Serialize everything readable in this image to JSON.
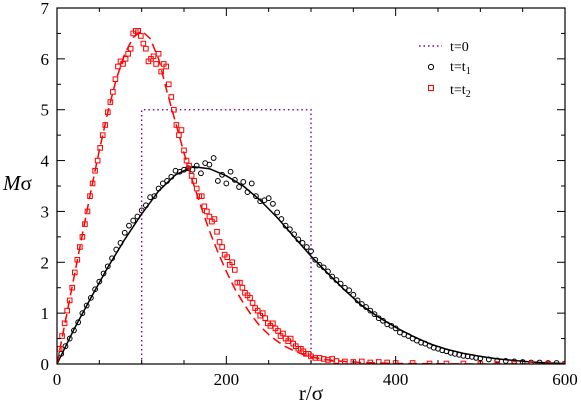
{
  "chart_data": {
    "type": "scatter",
    "title": "",
    "xlabel": "r/σ",
    "ylabel_italic": "M",
    "ylabel_rest": "σ",
    "xlim": [
      0,
      600
    ],
    "ylim": [
      0,
      7
    ],
    "xticks": [
      0,
      200,
      400,
      600
    ],
    "yticks": [
      0,
      1,
      2,
      3,
      4,
      5,
      6,
      7
    ],
    "xtick_labels": [
      "0",
      "200",
      "400",
      "600"
    ],
    "ytick_labels": [
      "0",
      "1",
      "2",
      "3",
      "4",
      "5",
      "6",
      "7"
    ],
    "minor_ticks": true,
    "grid": false,
    "legend_position": "top-right",
    "legend": [
      {
        "label_main": "t=0",
        "label_sub": "",
        "color": "#800080",
        "marker": "dotted-line"
      },
      {
        "label_main": "t=t",
        "label_sub": "1",
        "color": "#000000",
        "marker": "open-circle"
      },
      {
        "label_main": "t=t",
        "label_sub": "2",
        "color": "#ff0000",
        "marker": "open-square"
      }
    ],
    "series": [
      {
        "name": "t=0",
        "style": "dotted",
        "color": "#800080",
        "x": [
          100,
          100,
          300,
          300
        ],
        "y": [
          0,
          5,
          5,
          0
        ]
      },
      {
        "name": "t=t1",
        "style": "markers-with-solid-fit",
        "marker": "open-circle",
        "color": "#000000",
        "fit_x": [
          0,
          20,
          40,
          60,
          80,
          100,
          120,
          140,
          160,
          180,
          200,
          220,
          240,
          260,
          280,
          300,
          320,
          340,
          360,
          380,
          400,
          420,
          440,
          460,
          480,
          500,
          520,
          540,
          560,
          580,
          600
        ],
        "fit_y": [
          0,
          0.68,
          1.3,
          1.9,
          2.45,
          2.95,
          3.4,
          3.72,
          3.88,
          3.84,
          3.7,
          3.5,
          3.22,
          2.88,
          2.5,
          2.12,
          1.78,
          1.45,
          1.15,
          0.92,
          0.72,
          0.55,
          0.4,
          0.29,
          0.21,
          0.15,
          0.1,
          0.07,
          0.04,
          0.02,
          0.01
        ],
        "x": [
          5,
          10,
          15,
          20,
          25,
          30,
          35,
          40,
          45,
          50,
          55,
          60,
          65,
          70,
          75,
          80,
          85,
          90,
          95,
          100,
          105,
          110,
          115,
          120,
          125,
          130,
          135,
          140,
          145,
          150,
          155,
          160,
          165,
          170,
          175,
          180,
          185,
          190,
          195,
          200,
          205,
          210,
          215,
          220,
          225,
          230,
          235,
          240,
          245,
          250,
          255,
          260,
          265,
          270,
          275,
          280,
          285,
          290,
          295,
          300,
          305,
          310,
          315,
          320,
          325,
          330,
          335,
          340,
          345,
          350,
          355,
          360,
          365,
          370,
          375,
          380,
          385,
          390,
          395,
          400,
          405,
          410,
          415,
          420,
          425,
          430,
          435,
          440,
          445,
          450,
          455,
          460,
          465,
          470,
          475,
          480,
          485,
          490,
          495,
          500,
          510,
          520,
          530,
          540,
          550,
          560,
          570,
          580,
          590,
          600
        ],
        "y": [
          0.2,
          0.35,
          0.5,
          0.66,
          0.82,
          1.0,
          1.15,
          1.3,
          1.47,
          1.62,
          1.78,
          1.92,
          2.08,
          2.25,
          2.38,
          2.58,
          2.72,
          2.82,
          2.9,
          3.02,
          3.12,
          3.28,
          3.3,
          3.45,
          3.55,
          3.6,
          3.68,
          3.8,
          3.78,
          3.82,
          3.85,
          3.82,
          3.9,
          3.75,
          3.95,
          3.92,
          4.05,
          3.6,
          3.72,
          3.55,
          3.78,
          3.62,
          3.48,
          3.58,
          3.38,
          3.55,
          3.3,
          3.2,
          3.22,
          3.26,
          3.15,
          2.98,
          2.85,
          2.72,
          2.65,
          2.55,
          2.45,
          2.38,
          2.3,
          2.22,
          2.05,
          1.95,
          1.9,
          1.82,
          1.72,
          1.65,
          1.58,
          1.5,
          1.45,
          1.36,
          1.25,
          1.18,
          1.12,
          1.05,
          0.98,
          0.9,
          0.85,
          0.78,
          0.75,
          0.7,
          0.62,
          0.58,
          0.55,
          0.5,
          0.46,
          0.42,
          0.4,
          0.36,
          0.32,
          0.3,
          0.27,
          0.25,
          0.22,
          0.2,
          0.18,
          0.16,
          0.15,
          0.14,
          0.12,
          0.11,
          0.09,
          0.07,
          0.06,
          0.05,
          0.04,
          0.03,
          0.03,
          0.02,
          0.02,
          0.01
        ]
      },
      {
        "name": "t=t2",
        "style": "markers-with-dashed-fit",
        "marker": "open-square",
        "color": "#ff0000",
        "fit_x": [
          0,
          10,
          20,
          30,
          40,
          50,
          60,
          70,
          80,
          90,
          100,
          110,
          120,
          130,
          140,
          150,
          160,
          170,
          180,
          190,
          200,
          210,
          220,
          230,
          240,
          250,
          260,
          270,
          280,
          290,
          300,
          320,
          340,
          360,
          380,
          400,
          450,
          500,
          550,
          600
        ],
        "fit_y": [
          0,
          0.85,
          1.7,
          2.55,
          3.4,
          4.2,
          4.95,
          5.6,
          6.1,
          6.42,
          6.55,
          6.4,
          6.0,
          5.35,
          4.75,
          4.15,
          3.6,
          3.1,
          2.62,
          2.2,
          1.82,
          1.48,
          1.2,
          0.95,
          0.74,
          0.58,
          0.45,
          0.34,
          0.26,
          0.19,
          0.14,
          0.08,
          0.05,
          0.03,
          0.02,
          0.01,
          0.005,
          0,
          0,
          0
        ],
        "x": [
          3,
          6,
          9,
          12,
          15,
          18,
          21,
          24,
          27,
          30,
          33,
          36,
          39,
          42,
          45,
          48,
          51,
          54,
          57,
          60,
          63,
          66,
          69,
          72,
          75,
          78,
          81,
          84,
          87,
          90,
          93,
          96,
          99,
          102,
          105,
          108,
          111,
          114,
          117,
          120,
          123,
          126,
          129,
          132,
          135,
          138,
          141,
          144,
          147,
          150,
          153,
          156,
          159,
          162,
          165,
          168,
          171,
          174,
          177,
          180,
          183,
          186,
          189,
          192,
          195,
          198,
          201,
          204,
          207,
          210,
          213,
          216,
          219,
          222,
          225,
          228,
          231,
          234,
          237,
          240,
          243,
          246,
          249,
          252,
          255,
          258,
          261,
          264,
          267,
          270,
          273,
          276,
          279,
          282,
          285,
          288,
          291,
          294,
          297,
          300,
          305,
          310,
          315,
          320,
          325,
          330,
          340,
          350,
          360,
          370,
          380,
          390,
          400,
          420,
          440,
          460,
          480,
          500,
          520,
          540,
          560,
          580,
          600
        ],
        "y": [
          0.3,
          0.55,
          0.8,
          1.05,
          1.25,
          1.5,
          1.8,
          2.05,
          2.3,
          2.5,
          2.75,
          3.0,
          3.3,
          3.55,
          3.8,
          4.0,
          4.25,
          4.5,
          4.7,
          4.95,
          5.15,
          5.35,
          5.6,
          5.85,
          5.95,
          5.9,
          6.0,
          6.1,
          6.2,
          6.5,
          6.55,
          6.55,
          6.45,
          6.3,
          6.2,
          5.95,
          6.0,
          6.05,
          5.9,
          6.1,
          5.75,
          5.9,
          5.85,
          5.5,
          5.25,
          5.0,
          4.7,
          4.5,
          4.6,
          4.2,
          4.0,
          3.9,
          3.7,
          3.6,
          3.45,
          3.3,
          3.3,
          3.1,
          3.0,
          2.9,
          2.8,
          2.85,
          2.6,
          2.4,
          2.3,
          2.15,
          2.1,
          1.95,
          2.0,
          1.85,
          1.6,
          1.6,
          1.5,
          1.4,
          1.35,
          1.3,
          1.2,
          1.1,
          1.05,
          0.95,
          1.0,
          0.9,
          0.8,
          0.75,
          0.8,
          0.7,
          0.65,
          0.55,
          0.6,
          0.5,
          0.45,
          0.5,
          0.4,
          0.35,
          0.3,
          0.3,
          0.25,
          0.2,
          0.2,
          0.15,
          0.12,
          0.12,
          0.1,
          0.08,
          0.1,
          0.06,
          0.05,
          0.04,
          0.05,
          0.03,
          0.04,
          0.03,
          0.02,
          0.02,
          0.01,
          0.01,
          0.01,
          0.0,
          0.0,
          0.0,
          0.0,
          0.0,
          0.0
        ]
      }
    ]
  }
}
